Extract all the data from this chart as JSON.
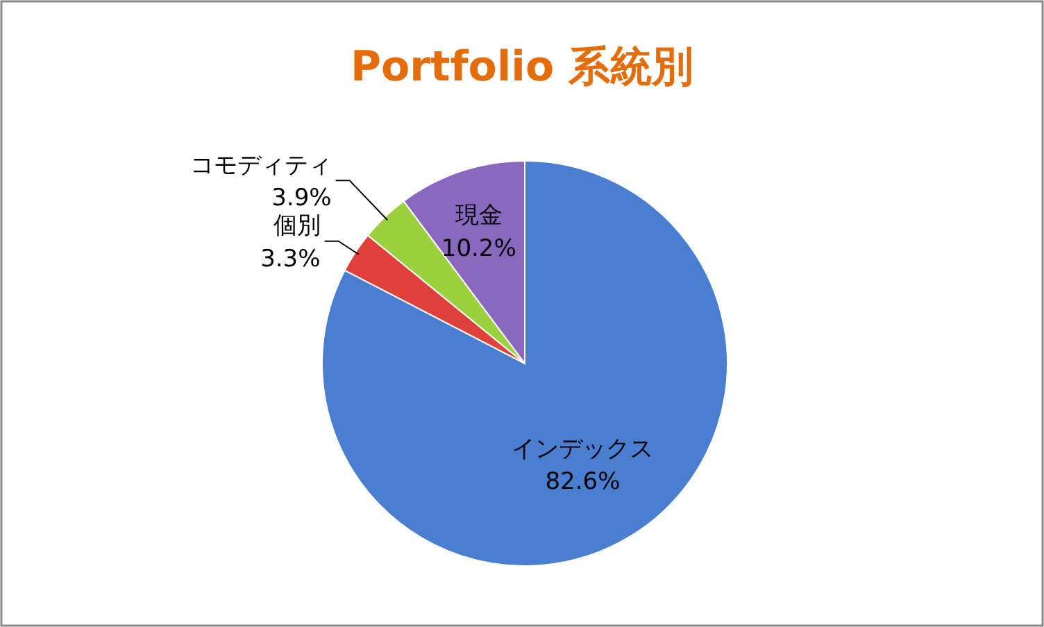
{
  "chart_data": {
    "type": "pie",
    "title": "Portfolio 系統別",
    "categories": [
      "インデックス",
      "個別",
      "コモディティ",
      "現金"
    ],
    "values": [
      82.6,
      3.3,
      3.9,
      10.2
    ],
    "colors": [
      "#4a7ed0",
      "#e0403a",
      "#9bd13c",
      "#8a68c0"
    ],
    "value_labels": [
      "82.6%",
      "3.3%",
      "3.9%",
      "10.2%"
    ]
  }
}
